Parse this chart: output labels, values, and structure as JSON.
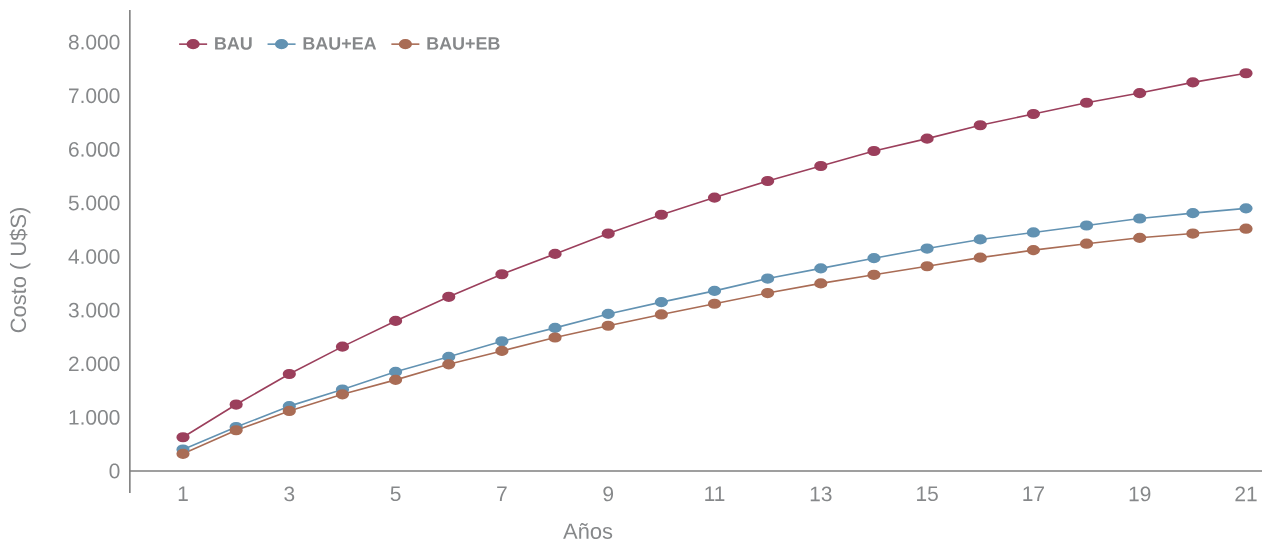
{
  "chart_data": {
    "type": "line",
    "xlabel": "Años",
    "ylabel": "Costo ( U$S)",
    "categories": [
      "1",
      null,
      "3",
      null,
      "5",
      null,
      "7",
      null,
      "9",
      null,
      "11",
      null,
      "13",
      null,
      "15",
      null,
      "17",
      null,
      "19",
      null,
      "21"
    ],
    "series": [
      {
        "name": "BAU",
        "color": "#9b3f5c",
        "values": [
          630,
          1240,
          1810,
          2320,
          2800,
          3250,
          3670,
          4050,
          4430,
          4780,
          5100,
          5410,
          5690,
          5970,
          6200,
          6450,
          6660,
          6870,
          7050,
          7250,
          7420
        ]
      },
      {
        "name": "BAU+EA",
        "color": "#6292b2",
        "values": [
          400,
          820,
          1210,
          1520,
          1850,
          2130,
          2420,
          2670,
          2930,
          3150,
          3360,
          3590,
          3780,
          3970,
          4150,
          4320,
          4450,
          4580,
          4710,
          4810,
          4900
        ]
      },
      {
        "name": "BAU+EB",
        "color": "#a96c55",
        "values": [
          320,
          760,
          1120,
          1430,
          1700,
          1990,
          2240,
          2490,
          2710,
          2920,
          3120,
          3320,
          3500,
          3660,
          3820,
          3980,
          4120,
          4240,
          4350,
          4430,
          4520
        ]
      }
    ],
    "ylim": [
      0,
      8600
    ],
    "yticks": [
      0,
      {
        "value": 1000,
        "label": "1.000"
      },
      {
        "value": 2000,
        "label": "2.000"
      },
      {
        "value": 3000,
        "label": "3.000"
      },
      {
        "value": 4000,
        "label": "4.000"
      },
      {
        "value": 5000,
        "label": "5.000"
      },
      {
        "value": 6000,
        "label": "6.000"
      },
      {
        "value": 7000,
        "label": "7.000"
      },
      {
        "value": 8000,
        "label": "8.000"
      }
    ],
    "legend": "top left",
    "marker": "circle",
    "line_style": "solid"
  }
}
